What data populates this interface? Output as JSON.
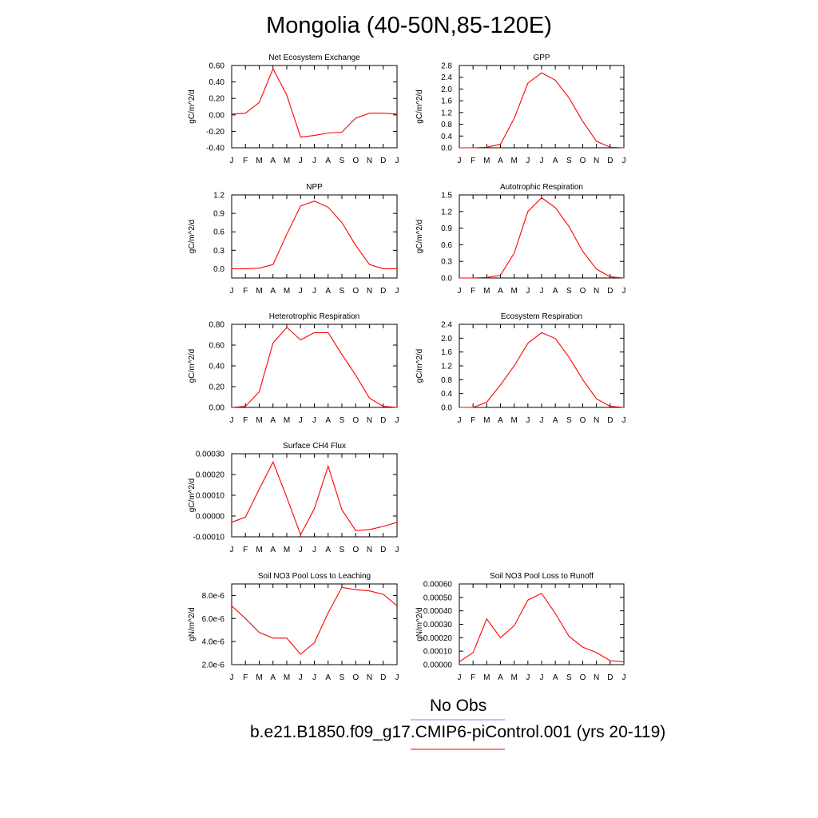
{
  "title": "Mongolia (40-50N,85-120E)",
  "series_color": "#ff0000",
  "obs_color": "#8080ff",
  "legend": {
    "obs": "No Obs",
    "model": "b.e21.B1850.f09_g17.CMIP6-piControl.001 (yrs 20-119)"
  },
  "chart_data": [
    {
      "type": "line",
      "title": "Net Ecosystem Exchange",
      "ylabel": "gC/m^2/d",
      "x": [
        "J",
        "F",
        "M",
        "A",
        "M",
        "J",
        "J",
        "A",
        "S",
        "O",
        "N",
        "D",
        "J"
      ],
      "ylim": [
        -0.4,
        0.6
      ],
      "yticks": [
        -0.4,
        -0.2,
        0,
        0.2,
        0.4,
        0.6
      ],
      "ytick_labels": [
        "-0.40",
        "-0.20",
        "0.00",
        "0.20",
        "0.40",
        "0.60"
      ],
      "series": [
        {
          "values": [
            0.01,
            0.02,
            0.15,
            0.56,
            0.24,
            -0.27,
            -0.25,
            -0.22,
            -0.21,
            -0.04,
            0.02,
            0.02,
            0.01
          ]
        }
      ]
    },
    {
      "type": "line",
      "title": "GPP",
      "ylabel": "gC/m^2/d",
      "x": [
        "J",
        "F",
        "M",
        "A",
        "M",
        "J",
        "J",
        "A",
        "S",
        "O",
        "N",
        "D",
        "J"
      ],
      "ylim": [
        0,
        2.8
      ],
      "yticks": [
        0,
        0.4,
        0.8,
        1.2,
        1.6,
        2.0,
        2.4,
        2.8
      ],
      "ytick_labels": [
        "0.0",
        "0.4",
        "0.8",
        "1.2",
        "1.6",
        "2.0",
        "2.4",
        "2.8"
      ],
      "series": [
        {
          "values": [
            0,
            0,
            0.02,
            0.12,
            1.0,
            2.2,
            2.55,
            2.3,
            1.7,
            0.9,
            0.22,
            0.02,
            0
          ]
        }
      ]
    },
    {
      "type": "line",
      "title": "NPP",
      "ylabel": "gC/m^2/d",
      "x": [
        "J",
        "F",
        "M",
        "A",
        "M",
        "J",
        "J",
        "A",
        "S",
        "O",
        "N",
        "D",
        "J"
      ],
      "ylim": [
        -0.15,
        1.2
      ],
      "yticks": [
        0,
        0.3,
        0.6,
        0.9,
        1.2
      ],
      "ytick_labels": [
        "0.0",
        "0.3",
        "0.6",
        "0.9",
        "1.2"
      ],
      "series": [
        {
          "values": [
            0,
            0,
            0.01,
            0.07,
            0.56,
            1.02,
            1.1,
            1.0,
            0.75,
            0.38,
            0.07,
            0,
            0
          ]
        }
      ]
    },
    {
      "type": "line",
      "title": "Autotrophic Respiration",
      "ylabel": "gC/m^2/d",
      "x": [
        "J",
        "F",
        "M",
        "A",
        "M",
        "J",
        "J",
        "A",
        "S",
        "O",
        "N",
        "D",
        "J"
      ],
      "ylim": [
        0,
        1.5
      ],
      "yticks": [
        0,
        0.3,
        0.6,
        0.9,
        1.2,
        1.5
      ],
      "ytick_labels": [
        "0.0",
        "0.3",
        "0.6",
        "0.9",
        "1.2",
        "1.5"
      ],
      "series": [
        {
          "values": [
            0,
            0,
            0.01,
            0.05,
            0.45,
            1.2,
            1.45,
            1.27,
            0.93,
            0.48,
            0.16,
            0.02,
            0
          ]
        }
      ]
    },
    {
      "type": "line",
      "title": "Heterotrophic Respiration",
      "ylabel": "gC/m^2/d",
      "x": [
        "J",
        "F",
        "M",
        "A",
        "M",
        "J",
        "J",
        "A",
        "S",
        "O",
        "N",
        "D",
        "J"
      ],
      "ylim": [
        0,
        0.8
      ],
      "yticks": [
        0,
        0.2,
        0.4,
        0.6,
        0.8
      ],
      "ytick_labels": [
        "0.00",
        "0.20",
        "0.40",
        "0.60",
        "0.80"
      ],
      "series": [
        {
          "values": [
            0,
            0.01,
            0.15,
            0.62,
            0.77,
            0.65,
            0.72,
            0.72,
            0.51,
            0.31,
            0.09,
            0.01,
            0
          ]
        }
      ]
    },
    {
      "type": "line",
      "title": "Ecosystem Respiration",
      "ylabel": "gC/m^2/d",
      "x": [
        "J",
        "F",
        "M",
        "A",
        "M",
        "J",
        "J",
        "A",
        "S",
        "O",
        "N",
        "D",
        "J"
      ],
      "ylim": [
        0,
        2.4
      ],
      "yticks": [
        0,
        0.4,
        0.8,
        1.2,
        1.6,
        2.0,
        2.4
      ],
      "ytick_labels": [
        "0.0",
        "0.4",
        "0.8",
        "1.2",
        "1.6",
        "2.0",
        "2.4"
      ],
      "series": [
        {
          "values": [
            0,
            0,
            0.15,
            0.65,
            1.2,
            1.85,
            2.16,
            1.99,
            1.45,
            0.8,
            0.25,
            0.03,
            0
          ]
        }
      ]
    },
    {
      "type": "line",
      "title": "Surface CH4 Flux",
      "ylabel": "gC/m^2/d",
      "x": [
        "J",
        "F",
        "M",
        "A",
        "M",
        "J",
        "J",
        "A",
        "S",
        "O",
        "N",
        "D",
        "J"
      ],
      "ylim": [
        -0.0001,
        0.0003
      ],
      "yticks": [
        -0.0001,
        0,
        0.0001,
        0.0002,
        0.0003
      ],
      "ytick_labels": [
        "-0.00010",
        "0.00000",
        "0.00010",
        "0.00020",
        "0.00030"
      ],
      "series": [
        {
          "values": [
            -3e-05,
            -5e-06,
            0.00013,
            0.00026,
            9e-05,
            -9e-05,
            3.5e-05,
            0.00024,
            3e-05,
            -7e-05,
            -6.5e-05,
            -5e-05,
            -3e-05
          ]
        }
      ]
    },
    {
      "type": "line",
      "title": "Soil NO3 Pool Loss to Leaching",
      "ylabel": "gN/m^2/d",
      "x": [
        "J",
        "F",
        "M",
        "A",
        "M",
        "J",
        "J",
        "A",
        "S",
        "O",
        "N",
        "D",
        "J"
      ],
      "ylim": [
        2e-06,
        9e-06
      ],
      "yticks": [
        2e-06,
        4e-06,
        6e-06,
        8e-06
      ],
      "ytick_labels": [
        "2.0e-6",
        "4.0e-6",
        "6.0e-6",
        "8.0e-6"
      ],
      "series": [
        {
          "values": [
            7.1e-06,
            6e-06,
            4.8e-06,
            4.3e-06,
            4.3e-06,
            2.9e-06,
            3.9e-06,
            6.5e-06,
            8.7e-06,
            8.5e-06,
            8.4e-06,
            8.1e-06,
            7.1e-06
          ]
        }
      ]
    },
    {
      "type": "line",
      "title": "Soil NO3 Pool Loss to Runoff",
      "ylabel": "gN/m^2/d",
      "x": [
        "J",
        "F",
        "M",
        "A",
        "M",
        "J",
        "J",
        "A",
        "S",
        "O",
        "N",
        "D",
        "J"
      ],
      "ylim": [
        0,
        0.0006
      ],
      "yticks": [
        0,
        0.0001,
        0.0002,
        0.0003,
        0.0004,
        0.0005,
        0.0006
      ],
      "ytick_labels": [
        "0.00000",
        "0.00010",
        "0.00020",
        "0.00030",
        "0.00040",
        "0.00050",
        "0.00060"
      ],
      "series": [
        {
          "values": [
            2e-05,
            9e-05,
            0.00034,
            0.0002,
            0.00029,
            0.00048,
            0.00053,
            0.00038,
            0.00021,
            0.00013,
            9e-05,
            3e-05,
            2e-05
          ]
        }
      ]
    }
  ]
}
